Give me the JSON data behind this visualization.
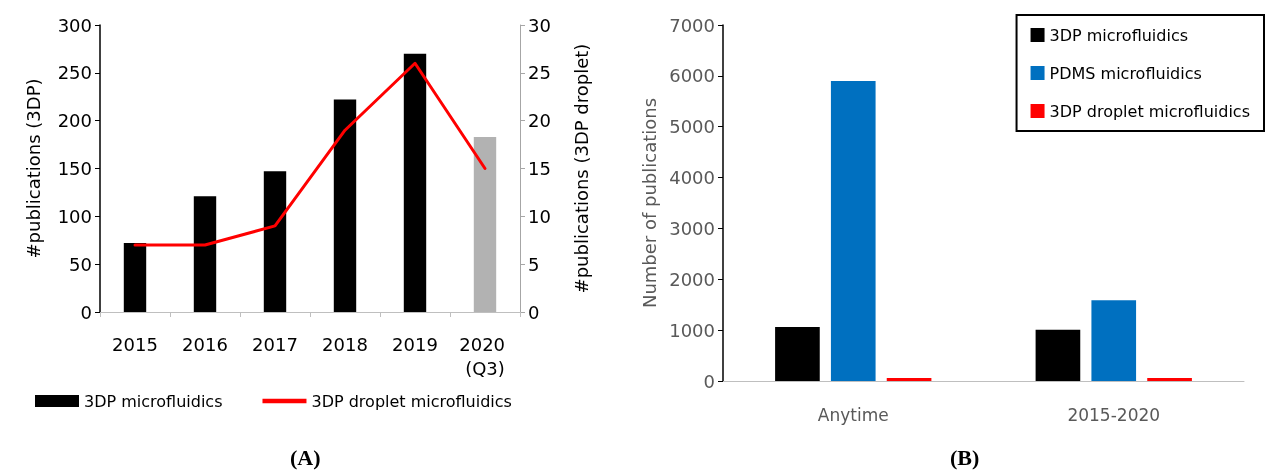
{
  "chart_data": [
    {
      "type": "bar",
      "categories": [
        "2015",
        "2016",
        "2017",
        "2018",
        "2019",
        "2020 (Q3)"
      ],
      "ylabel": "#publications (3DP)",
      "y2label": "#publications (3DP droplet)",
      "ylim": [
        0,
        300
      ],
      "yticks": [
        0,
        50,
        100,
        150,
        200,
        250,
        300
      ],
      "y2lim": [
        0,
        30
      ],
      "y2ticks": [
        0,
        5,
        10,
        15,
        20,
        25,
        30
      ],
      "grid": false,
      "legend": "bottom",
      "annotations": [
        "(A)"
      ],
      "series": [
        {
          "name": "3DP microfluidics",
          "type": "bar",
          "color": "#000000",
          "colors": [
            "#000000",
            "#000000",
            "#000000",
            "#000000",
            "#000000",
            "#b2b2b2"
          ],
          "values": [
            72,
            121,
            147,
            222,
            270,
            183
          ]
        },
        {
          "name": "3DP droplet microfluidics",
          "type": "line",
          "axis": "y2",
          "color": "#ff0000",
          "marker": "none",
          "values": [
            7,
            7,
            9,
            19,
            26,
            15
          ]
        }
      ]
    },
    {
      "type": "bar",
      "categories": [
        "Anytime",
        "2015-2020"
      ],
      "ylabel": "Number of publications",
      "ylim": [
        0,
        7000
      ],
      "yticks": [
        0,
        1000,
        2000,
        3000,
        4000,
        5000,
        6000,
        7000
      ],
      "grid": false,
      "legend": "top right",
      "annotations": [
        "(B)"
      ],
      "series": [
        {
          "name": "3DP microfluidics",
          "color": "#000000",
          "values": [
            1060,
            1010
          ]
        },
        {
          "name": "PDMS microfluidics",
          "color": "#0070c0",
          "values": [
            5900,
            1590
          ]
        },
        {
          "name": "3DP droplet microfluidics",
          "color": "#ff0000",
          "values": [
            60,
            60
          ]
        }
      ]
    }
  ]
}
